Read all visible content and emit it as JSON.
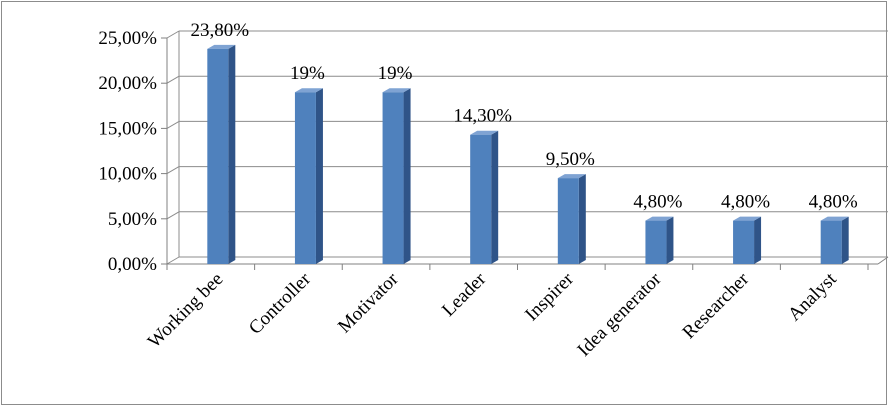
{
  "chart_data": {
    "type": "bar",
    "categories": [
      "Working bee",
      "Controller",
      "Motivator",
      "Leader",
      "Inspirer",
      "Idea generator",
      "Researcher",
      "Analyst"
    ],
    "values": [
      23.8,
      19,
      19,
      14.3,
      9.5,
      4.8,
      4.8,
      4.8
    ],
    "data_labels": [
      "23,80%",
      "19%",
      "19%",
      "14,30%",
      "9,50%",
      "4,80%",
      "4,80%",
      "4,80%"
    ],
    "y_ticks": [
      0,
      5,
      10,
      15,
      20,
      25
    ],
    "y_tick_labels": [
      "0,00%",
      "5,00%",
      "10,00%",
      "15,00%",
      "20,00%",
      "25,00%"
    ],
    "ylim": [
      0,
      25
    ],
    "title": "",
    "xlabel": "",
    "ylabel": "",
    "grid": true,
    "legend": "none",
    "colors": {
      "bar_front": "#4f81bd",
      "bar_side": "#2f5488",
      "bar_top": "#7fa3d3",
      "gridline": "#8c8c8c",
      "axis": "#808080"
    }
  }
}
